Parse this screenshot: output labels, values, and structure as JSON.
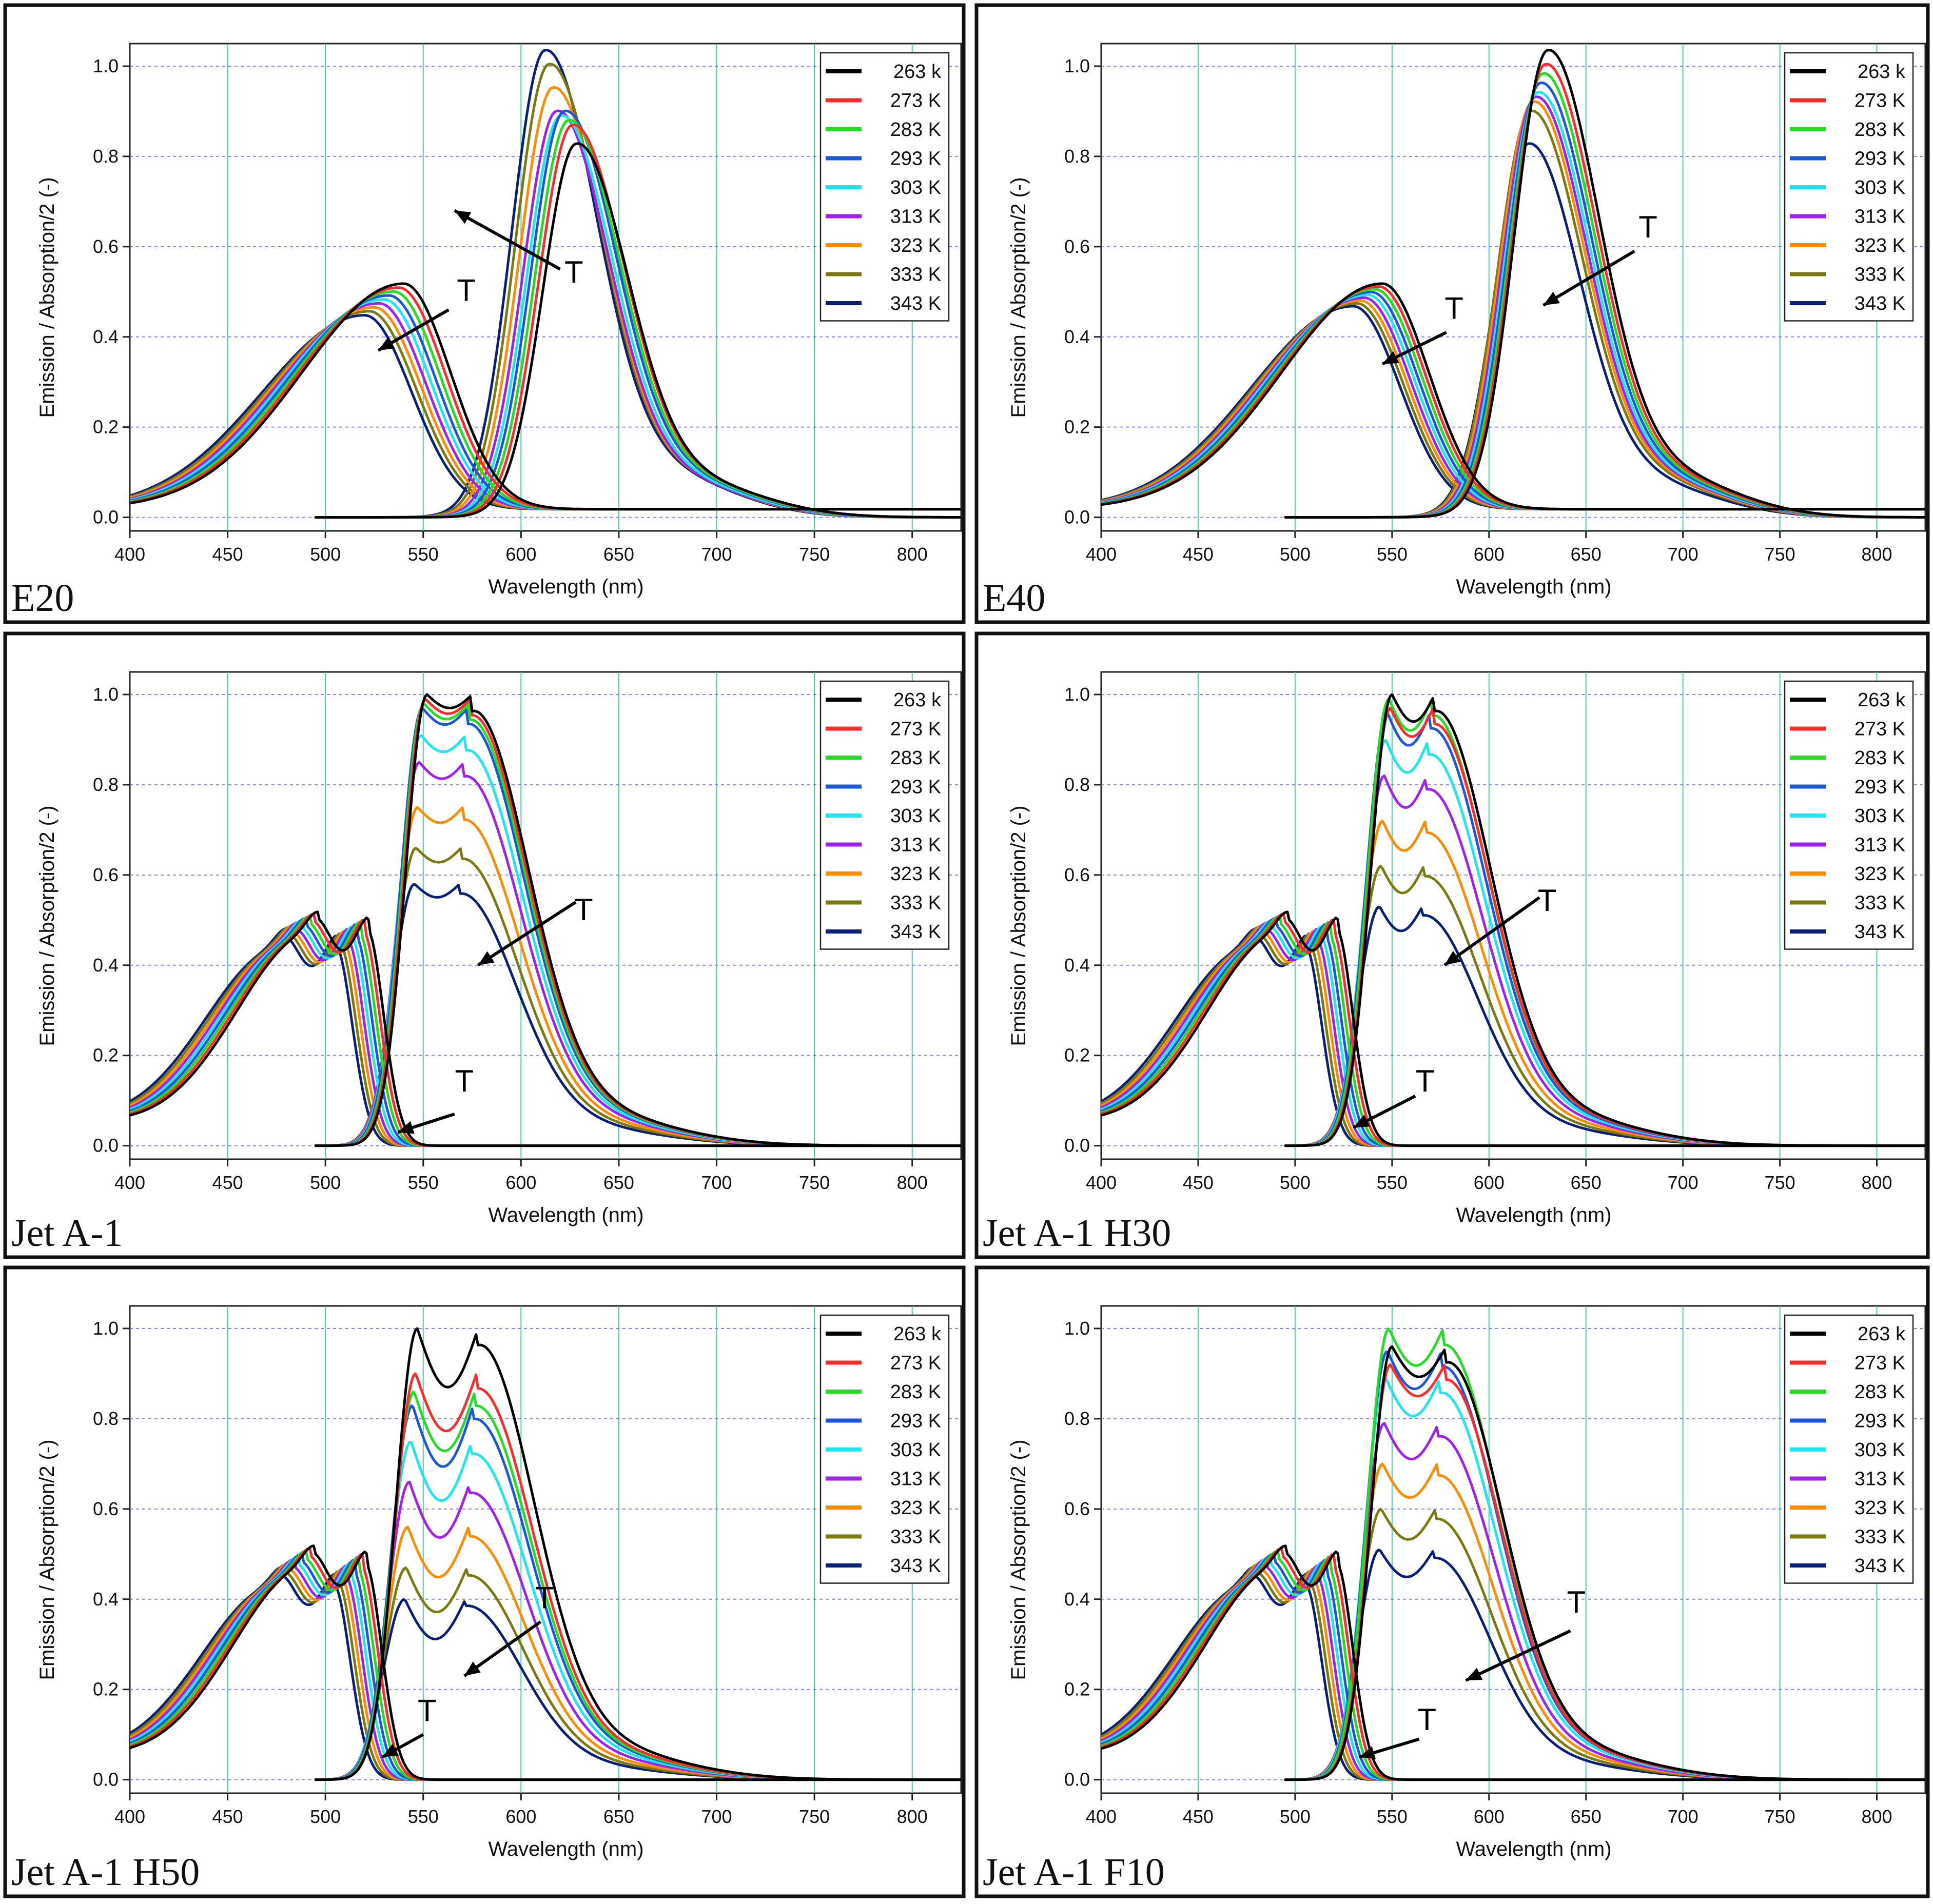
{
  "series_names": [
    "263 k",
    "273 K",
    "283 K",
    "293 K",
    "303 K",
    "313 K",
    "323 K",
    "333 K",
    "343 K"
  ],
  "series_colors": [
    "#000000",
    "#ff2a2a",
    "#22dd22",
    "#1a56e0",
    "#1ee6ee",
    "#a020f0",
    "#ff8c00",
    "#7a7a10",
    "#0a1f7a"
  ],
  "arrow_label": "T",
  "chart_data": [
    {
      "type": "line",
      "title": "E20",
      "xlabel": "Wavelength (nm)",
      "ylabel": "Emission / Absorption/2 (-)",
      "xlim": [
        400,
        825
      ],
      "ylim": [
        -0.03,
        1.05
      ],
      "xticks": [
        400,
        450,
        500,
        550,
        600,
        650,
        700,
        750,
        800
      ],
      "yticks": [
        0.0,
        0.2,
        0.4,
        0.6,
        0.8,
        1.0
      ],
      "legend_position": "top-right",
      "absorption": {
        "shape": "gauss",
        "center_first": 540,
        "center_last": 520,
        "height_first": 0.5,
        "height_last": 0.43
      },
      "emission": {
        "shape": "gauss",
        "center_first": 628,
        "center_last": 612,
        "peaks": [
          0.8,
          0.84,
          0.85,
          0.87,
          0.86,
          0.87,
          0.92,
          0.97,
          1.0
        ],
        "onset": 495
      },
      "arrows": [
        {
          "from": [
            563,
            0.46
          ],
          "to": [
            527,
            0.37
          ],
          "label_at": [
            572,
            0.48
          ]
        },
        {
          "from": [
            620,
            0.55
          ],
          "to": [
            566,
            0.68
          ],
          "label_at": [
            627,
            0.52
          ]
        }
      ]
    },
    {
      "type": "line",
      "title": "E40",
      "xlabel": "Wavelength (nm)",
      "ylabel": "Emission / Absorption/2 (-)",
      "xlim": [
        400,
        825
      ],
      "ylim": [
        -0.03,
        1.05
      ],
      "xticks": [
        400,
        450,
        500,
        550,
        600,
        650,
        700,
        750,
        800
      ],
      "yticks": [
        0.0,
        0.2,
        0.4,
        0.6,
        0.8,
        1.0
      ],
      "legend_position": "top-right",
      "absorption": {
        "shape": "gauss",
        "center_first": 545,
        "center_last": 530,
        "height_first": 0.5,
        "height_last": 0.45
      },
      "emission": {
        "shape": "gauss",
        "center_first": 630,
        "center_last": 620,
        "peaks": [
          1.0,
          0.97,
          0.95,
          0.93,
          0.91,
          0.9,
          0.89,
          0.87,
          0.8
        ],
        "onset": 495
      },
      "arrows": [
        {
          "from": [
            578,
            0.41
          ],
          "to": [
            545,
            0.34
          ],
          "label_at": [
            582,
            0.44
          ]
        },
        {
          "from": [
            675,
            0.59
          ],
          "to": [
            628,
            0.47
          ],
          "label_at": [
            682,
            0.62
          ]
        }
      ]
    },
    {
      "type": "line",
      "title": "Jet A-1",
      "xlabel": "Wavelength (nm)",
      "ylabel": "Emission / Absorption/2 (-)",
      "xlim": [
        400,
        825
      ],
      "ylim": [
        -0.03,
        1.05
      ],
      "xticks": [
        400,
        450,
        500,
        550,
        600,
        650,
        700,
        750,
        800
      ],
      "yticks": [
        0.0,
        0.2,
        0.4,
        0.6,
        0.8,
        1.0
      ],
      "legend_position": "top-right",
      "absorption": {
        "shape": "doublet",
        "peak_a": 497,
        "peak_b": 521,
        "height_first": 0.5,
        "height_last": 0.46,
        "shift": -2
      },
      "emission": {
        "shape": "doublet",
        "peak_a": 552,
        "peak_b": 575,
        "peaks": [
          1.0,
          0.99,
          0.98,
          0.97,
          0.91,
          0.85,
          0.75,
          0.66,
          0.58
        ],
        "dip": 0.03,
        "onset": 495
      },
      "arrows": [
        {
          "from": [
            566,
            0.07
          ],
          "to": [
            537,
            0.03
          ],
          "label_at": [
            571,
            0.12
          ]
        },
        {
          "from": [
            628,
            0.54
          ],
          "to": [
            578,
            0.4
          ],
          "label_at": [
            632,
            0.5
          ]
        }
      ]
    },
    {
      "type": "line",
      "title": "Jet A-1 H30",
      "xlabel": "Wavelength (nm)",
      "ylabel": "Emission / Absorption/2 (-)",
      "xlim": [
        400,
        825
      ],
      "ylim": [
        -0.03,
        1.05
      ],
      "xticks": [
        400,
        450,
        500,
        550,
        600,
        650,
        700,
        750,
        800
      ],
      "yticks": [
        0.0,
        0.2,
        0.4,
        0.6,
        0.8,
        1.0
      ],
      "legend_position": "top-right",
      "absorption": {
        "shape": "doublet",
        "peak_a": 497,
        "peak_b": 521,
        "height_first": 0.5,
        "height_last": 0.46,
        "shift": -2
      },
      "emission": {
        "shape": "doublet",
        "peak_a": 550,
        "peak_b": 572,
        "peaks": [
          1.0,
          0.97,
          0.99,
          0.96,
          0.9,
          0.82,
          0.72,
          0.62,
          0.53
        ],
        "dip": 0.06,
        "onset": 495
      },
      "arrows": [
        {
          "from": [
            626,
            0.55
          ],
          "to": [
            577,
            0.4
          ],
          "label_at": [
            630,
            0.52
          ]
        },
        {
          "from": [
            562,
            0.11
          ],
          "to": [
            530,
            0.04
          ],
          "label_at": [
            567,
            0.12
          ]
        }
      ]
    },
    {
      "type": "line",
      "title": "Jet A-1 H50",
      "xlabel": "Wavelength (nm)",
      "ylabel": "Emission / Absorption/2 (-)",
      "xlim": [
        400,
        825
      ],
      "ylim": [
        -0.03,
        1.05
      ],
      "xticks": [
        400,
        450,
        500,
        550,
        600,
        650,
        700,
        750,
        800
      ],
      "yticks": [
        0.0,
        0.2,
        0.4,
        0.6,
        0.8,
        1.0
      ],
      "legend_position": "top-right",
      "absorption": {
        "shape": "doublet",
        "peak_a": 495,
        "peak_b": 520,
        "height_first": 0.5,
        "height_last": 0.45,
        "shift": -2
      },
      "emission": {
        "shape": "doublet",
        "peak_a": 547,
        "peak_b": 578,
        "peaks": [
          1.0,
          0.9,
          0.86,
          0.83,
          0.75,
          0.66,
          0.56,
          0.47,
          0.4
        ],
        "dip": 0.13,
        "onset": 495
      },
      "arrows": [
        {
          "from": [
            610,
            0.35
          ],
          "to": [
            571,
            0.23
          ],
          "label_at": [
            612,
            0.38
          ]
        },
        {
          "from": [
            550,
            0.1
          ],
          "to": [
            529,
            0.05
          ],
          "label_at": [
            552,
            0.13
          ]
        }
      ]
    },
    {
      "type": "line",
      "title": "Jet A-1 F10",
      "xlabel": "Wavelength (nm)",
      "ylabel": "Emission / Absorption/2 (-)",
      "xlim": [
        400,
        825
      ],
      "ylim": [
        -0.03,
        1.05
      ],
      "xticks": [
        400,
        450,
        500,
        550,
        600,
        650,
        700,
        750,
        800
      ],
      "yticks": [
        0.0,
        0.2,
        0.4,
        0.6,
        0.8,
        1.0
      ],
      "legend_position": "top-right",
      "absorption": {
        "shape": "doublet",
        "peak_a": 496,
        "peak_b": 521,
        "height_first": 0.5,
        "height_last": 0.45,
        "shift": -2
      },
      "emission": {
        "shape": "doublet",
        "peak_a": 550,
        "peak_b": 578,
        "peaks": [
          0.96,
          0.92,
          1.0,
          0.95,
          0.89,
          0.79,
          0.7,
          0.6,
          0.51
        ],
        "dip": 0.07,
        "onset": 495
      },
      "arrows": [
        {
          "from": [
            642,
            0.33
          ],
          "to": [
            588,
            0.22
          ],
          "label_at": [
            645,
            0.37
          ]
        },
        {
          "from": [
            564,
            0.09
          ],
          "to": [
            533,
            0.05
          ],
          "label_at": [
            568,
            0.11
          ]
        }
      ]
    }
  ]
}
